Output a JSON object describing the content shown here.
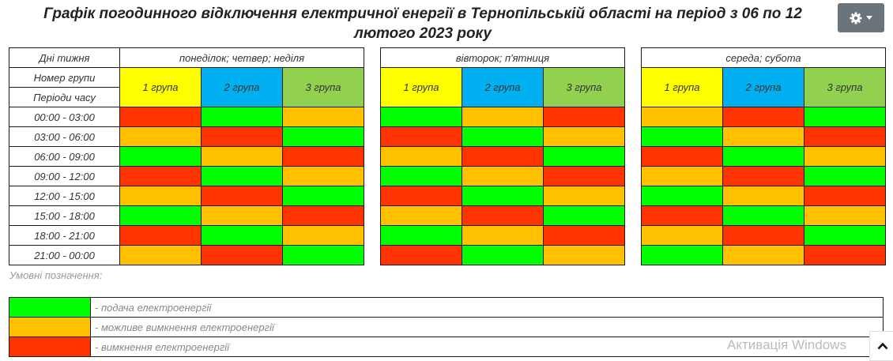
{
  "title": {
    "main": "Графік погодинного відключення електричної енергії  в Тернопільській області на період ",
    "bold": "з 06 по 12 лютого 2023 року"
  },
  "labels": {
    "days": "Дні тижня",
    "group_number": "Номер групи",
    "periods": "Періоди часу"
  },
  "day_groups": [
    {
      "name": "понеділок; четвер; неділя"
    },
    {
      "name": "вівторок; п'ятниця"
    },
    {
      "name": "середа; субота"
    }
  ],
  "groups": [
    "1 група",
    "2 група",
    "3 група"
  ],
  "group_colors": [
    "#ffff00",
    "#00b0f0",
    "#92d050"
  ],
  "periods": [
    "00:00 - 03:00",
    "03:00 - 06:00",
    "06:00 - 09:00",
    "09:00 - 12:00",
    "12:00 - 15:00",
    "15:00 - 18:00",
    "18:00 - 21:00",
    "21:00 - 00:00"
  ],
  "status_colors": {
    "g": "#00ff00",
    "y": "#ffc000",
    "r": "#ff3300"
  },
  "schedule": [
    [
      "rgy",
      "gyr",
      "yrg"
    ],
    [
      "yrg",
      "rgy",
      "gyr"
    ],
    [
      "gyr",
      "yrg",
      "rgy"
    ],
    [
      "rgy",
      "gyr",
      "yrg"
    ],
    [
      "yrg",
      "rgy",
      "gyr"
    ],
    [
      "gyr",
      "yrg",
      "rgy"
    ],
    [
      "rgy",
      "gyr",
      "yrg"
    ],
    [
      "yrg",
      "rgy",
      "gyr"
    ]
  ],
  "legend": {
    "caption": "Умовні позначення:",
    "items": [
      {
        "status": "g",
        "text": "- подача електроенергії"
      },
      {
        "status": "y",
        "text": "- можливе вимкнення електроенергії"
      },
      {
        "status": "r",
        "text": "- вимкнення електроенергії"
      }
    ]
  },
  "watermark": "Активація Windows",
  "icons": {
    "settings": "gear-icon",
    "dropdown": "caret-down-icon",
    "scroll_top": "chevron-up-icon"
  }
}
